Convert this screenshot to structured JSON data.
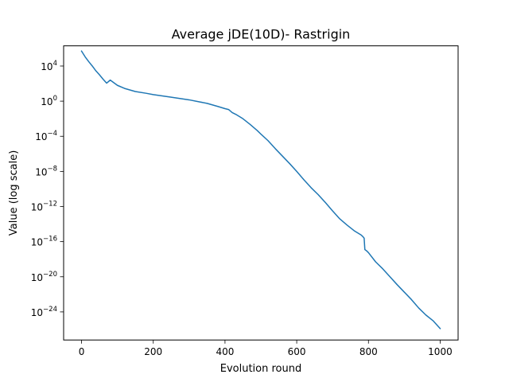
{
  "chart_data": {
    "type": "line",
    "title": "Average jDE(10D)- Rastrigin",
    "xlabel": "Evolution round",
    "ylabel": "Value (log scale)",
    "xlim": [
      -50,
      1050
    ],
    "ylim_log10": [
      -27.2,
      6.3
    ],
    "y_scale": "log",
    "grid": false,
    "x_ticks": [
      {
        "value": 0,
        "label": "0"
      },
      {
        "value": 200,
        "label": "200"
      },
      {
        "value": 400,
        "label": "400"
      },
      {
        "value": 600,
        "label": "600"
      },
      {
        "value": 800,
        "label": "800"
      },
      {
        "value": 1000,
        "label": "1000"
      }
    ],
    "y_ticks": [
      {
        "exp": 4,
        "base": "10",
        "sup": "4"
      },
      {
        "exp": 0,
        "base": "10",
        "sup": "0"
      },
      {
        "exp": -4,
        "base": "10",
        "sup": "−4"
      },
      {
        "exp": -8,
        "base": "10",
        "sup": "−8"
      },
      {
        "exp": -12,
        "base": "10",
        "sup": "−12"
      },
      {
        "exp": -16,
        "base": "10",
        "sup": "−16"
      },
      {
        "exp": -20,
        "base": "10",
        "sup": "−20"
      },
      {
        "exp": -24,
        "base": "10",
        "sup": "−24"
      }
    ],
    "series": [
      {
        "color": "#1f77b4",
        "x": [
          0,
          10,
          20,
          30,
          40,
          50,
          60,
          70,
          80,
          100,
          120,
          150,
          180,
          200,
          250,
          300,
          350,
          380,
          400,
          410,
          420,
          430,
          440,
          450,
          470,
          490,
          500,
          520,
          540,
          560,
          580,
          600,
          620,
          640,
          660,
          680,
          700,
          720,
          740,
          760,
          780,
          785,
          788,
          790,
          795,
          800,
          820,
          840,
          860,
          880,
          900,
          920,
          940,
          960,
          980,
          1000
        ],
        "log10_y": [
          5.7,
          5.05,
          4.5,
          4.0,
          3.45,
          3.0,
          2.5,
          2.05,
          2.4,
          1.8,
          1.45,
          1.1,
          0.9,
          0.75,
          0.45,
          0.15,
          -0.25,
          -0.6,
          -0.85,
          -0.95,
          -1.3,
          -1.5,
          -1.75,
          -2.0,
          -2.65,
          -3.35,
          -3.75,
          -4.5,
          -5.4,
          -6.25,
          -7.1,
          -8.0,
          -8.95,
          -9.85,
          -10.65,
          -11.55,
          -12.5,
          -13.4,
          -14.1,
          -14.75,
          -15.25,
          -15.45,
          -15.6,
          -16.9,
          -17.05,
          -17.25,
          -18.3,
          -19.1,
          -20.0,
          -20.9,
          -21.75,
          -22.6,
          -23.55,
          -24.35,
          -25.0,
          -25.9
        ]
      }
    ]
  }
}
